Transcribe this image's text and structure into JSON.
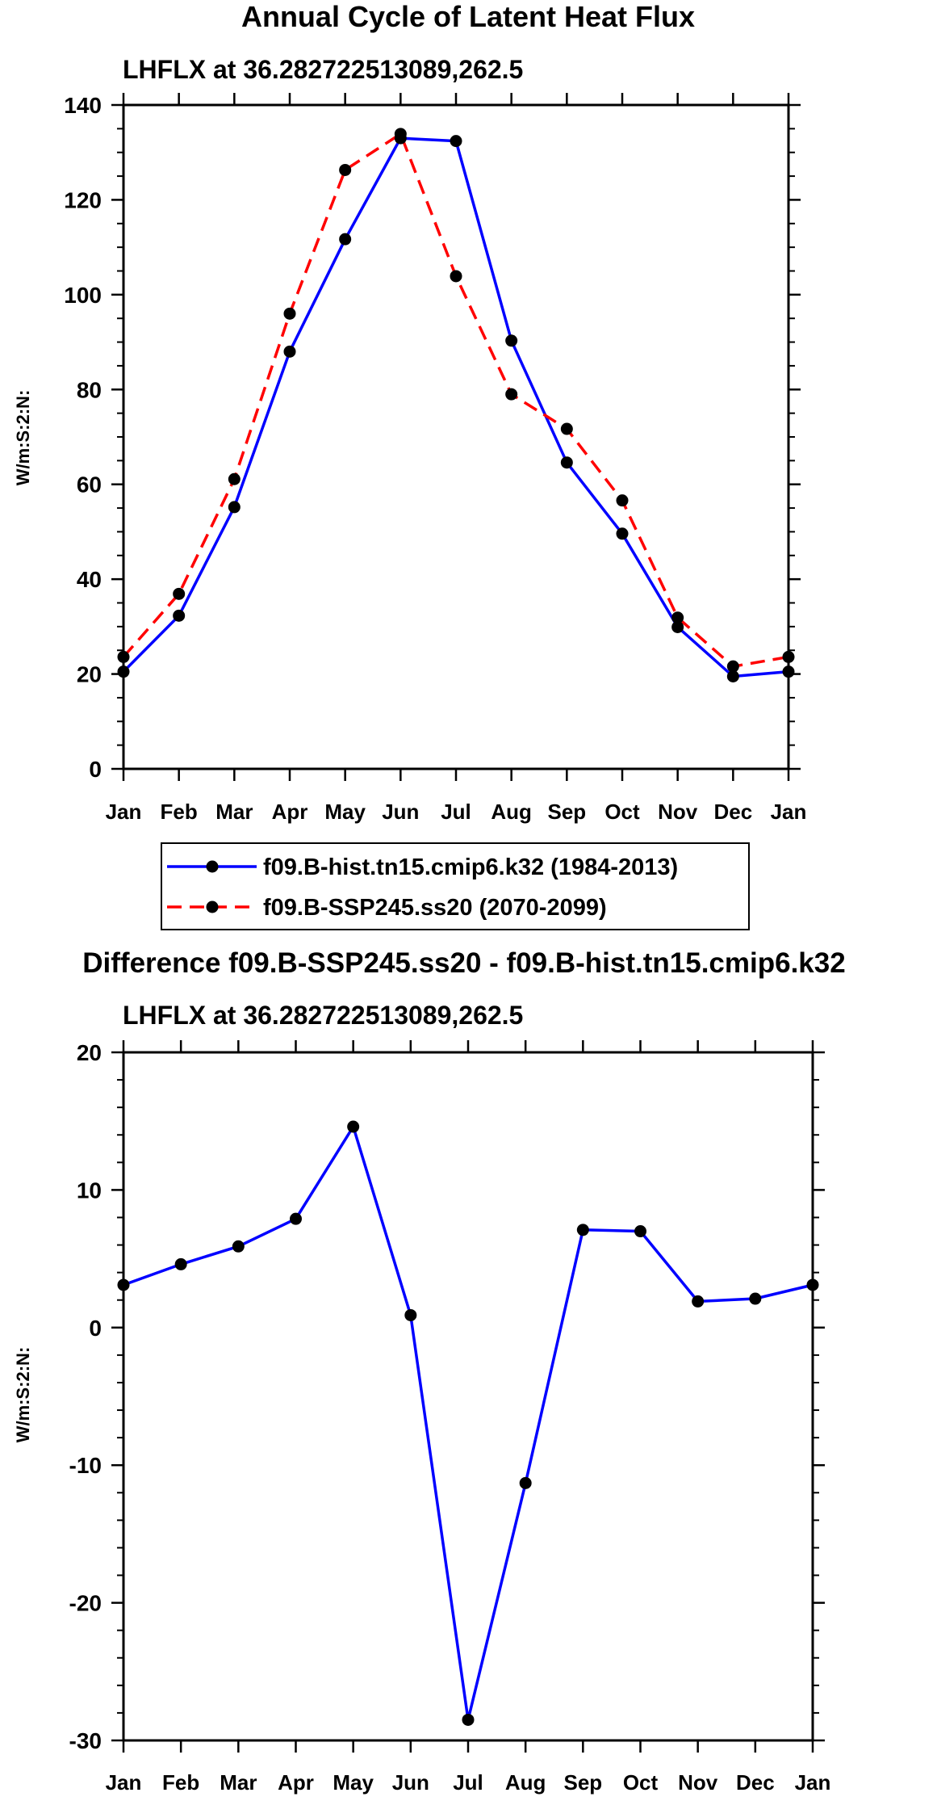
{
  "chart_data": [
    {
      "type": "line",
      "title": "Annual Cycle of Latent Heat Flux",
      "subtitle": "LHFLX at 36.282722513089,262.5",
      "xlabel": "",
      "ylabel": "W/m:S:2:N:",
      "categories": [
        "Jan",
        "Feb",
        "Mar",
        "Apr",
        "May",
        "Jun",
        "Jul",
        "Aug",
        "Sep",
        "Oct",
        "Nov",
        "Dec",
        "Jan"
      ],
      "ylim": [
        0,
        140
      ],
      "y_major_ticks": [
        0,
        20,
        40,
        60,
        80,
        100,
        120,
        140
      ],
      "y_minor_step": 5,
      "grid": false,
      "legend_position": "below",
      "series": [
        {
          "name": "f09.B-hist.tn15.cmip6.k32 (1984-2013)",
          "color": "#0000ff",
          "dash": "solid",
          "values": [
            20.5,
            32.3,
            55.2,
            88.0,
            111.7,
            133.0,
            132.4,
            90.3,
            64.6,
            49.6,
            29.9,
            19.5,
            20.5
          ]
        },
        {
          "name": "f09.B-SSP245.ss20 (2070-2099)",
          "color": "#ff0000",
          "dash": "dashed",
          "values": [
            23.6,
            36.9,
            61.1,
            96.0,
            126.3,
            133.9,
            103.9,
            79.0,
            71.7,
            56.6,
            31.9,
            21.6,
            23.6
          ]
        }
      ]
    },
    {
      "type": "line",
      "title": "Difference f09.B-SSP245.ss20 - f09.B-hist.tn15.cmip6.k32",
      "subtitle": "LHFLX at 36.282722513089,262.5",
      "xlabel": "",
      "ylabel": "W/m:S:2:N:",
      "categories": [
        "Jan",
        "Feb",
        "Mar",
        "Apr",
        "May",
        "Jun",
        "Jul",
        "Aug",
        "Sep",
        "Oct",
        "Nov",
        "Dec",
        "Jan"
      ],
      "ylim": [
        -30,
        20
      ],
      "y_major_ticks": [
        -30,
        -20,
        -10,
        0,
        10,
        20
      ],
      "y_minor_step": 2,
      "grid": false,
      "series": [
        {
          "name": "Difference",
          "color": "#0000ff",
          "dash": "solid",
          "values": [
            3.1,
            4.6,
            5.9,
            7.9,
            14.6,
            0.9,
            -28.5,
            -11.3,
            7.1,
            7.0,
            1.9,
            2.1,
            3.1
          ]
        }
      ]
    }
  ]
}
